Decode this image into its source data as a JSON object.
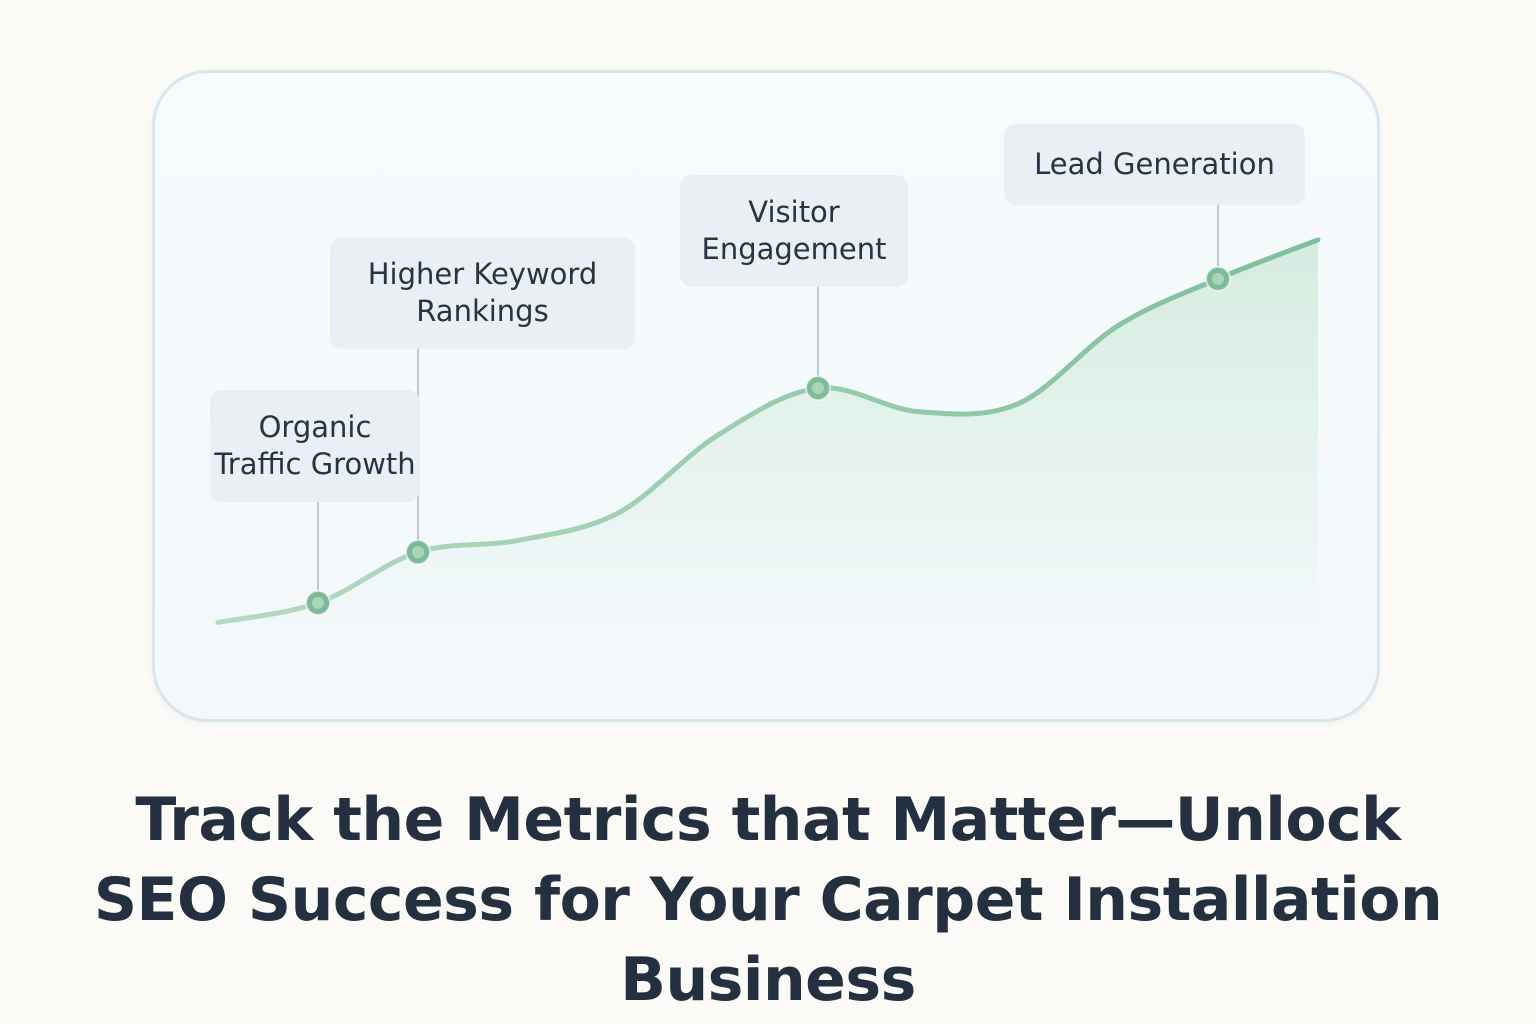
{
  "chart_data": {
    "type": "area",
    "title": "",
    "xlabel": "",
    "ylabel": "",
    "grid": false,
    "x": [
      0,
      1,
      2,
      3,
      4,
      5,
      6,
      7,
      8,
      9,
      10,
      11
    ],
    "y": [
      2,
      4.5,
      11,
      12.5,
      16,
      26,
      32,
      29,
      30,
      40,
      46,
      51
    ],
    "milestones": [
      {
        "x": 1,
        "label_lines": [
          "Organic",
          "Traffic Growth"
        ]
      },
      {
        "x": 2,
        "label_lines": [
          "Higher Keyword",
          "Rankings"
        ]
      },
      {
        "x": 6,
        "label_lines": [
          "Visitor",
          "Engagement"
        ]
      },
      {
        "x": 10,
        "label_lines": [
          "Lead Generation"
        ]
      }
    ],
    "colors": {
      "line_start": "#b4dac0",
      "line_end": "#7fbf9c",
      "fill": "#cfe9db",
      "point": "#7cbb98",
      "connector": "#b9c8d2"
    }
  },
  "headline": {
    "lines": [
      "Track the Metrics that Matter—Unlock",
      "SEO Success for Your Carpet Installation",
      "Business"
    ]
  }
}
